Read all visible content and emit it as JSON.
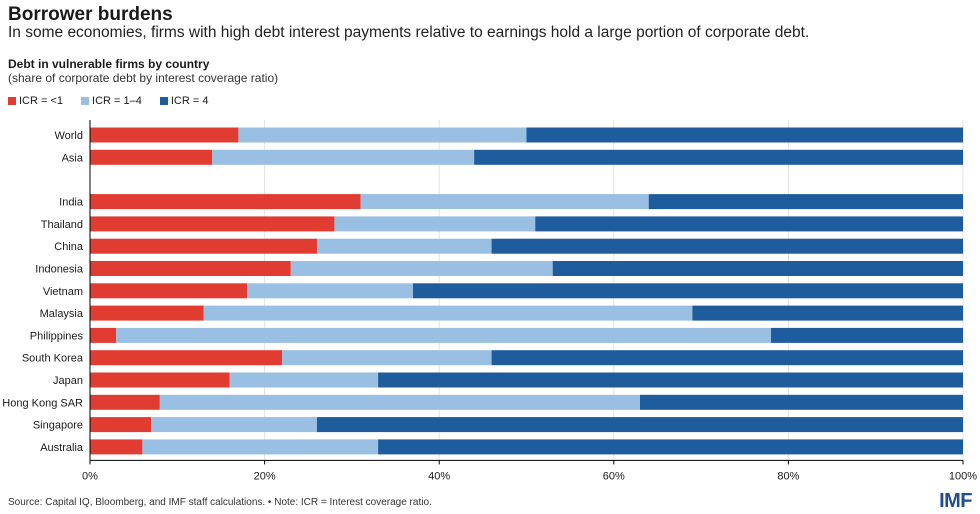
{
  "header": {
    "title": "Borrower burdens",
    "subtitle": "In some economies, firms with high debt interest payments relative to earnings hold a large portion of corporate debt."
  },
  "chart_data": {
    "type": "bar",
    "orientation": "horizontal",
    "stacked": true,
    "title": "Debt in vulnerable firms by country",
    "subtitle": "(share of corporate debt by interest coverage ratio)",
    "categories": [
      "World",
      "Asia",
      "India",
      "Thailand",
      "China",
      "Indonesia",
      "Vietnam",
      "Malaysia",
      "Philippines",
      "South Korea",
      "Japan",
      "Hong Kong SAR",
      "Singapore",
      "Australia"
    ],
    "series": [
      {
        "name": "ICR = <1",
        "color": "#e03c31",
        "values": [
          17,
          14,
          31,
          28,
          26,
          23,
          18,
          13,
          3,
          22,
          16,
          8,
          7,
          6
        ]
      },
      {
        "name": "ICR = 1–4",
        "color": "#99bfe2",
        "values": [
          33,
          30,
          33,
          23,
          20,
          30,
          19,
          56,
          75,
          24,
          17,
          55,
          19,
          27
        ]
      },
      {
        "name": "ICR = 4",
        "color": "#1f5c9e",
        "values": [
          50,
          56,
          36,
          49,
          54,
          47,
          63,
          31,
          22,
          54,
          67,
          37,
          74,
          67
        ]
      }
    ],
    "xlim": [
      0,
      100
    ],
    "xticks": [
      "0%",
      "20%",
      "40%",
      "60%",
      "80%",
      "100%"
    ],
    "grid": true,
    "legend_position": "top-left"
  },
  "footer": {
    "source": "Source: Capital IQ, Bloomberg, and IMF staff calculations. • Note: ICR = Interest coverage ratio.",
    "logo": "IMF"
  }
}
